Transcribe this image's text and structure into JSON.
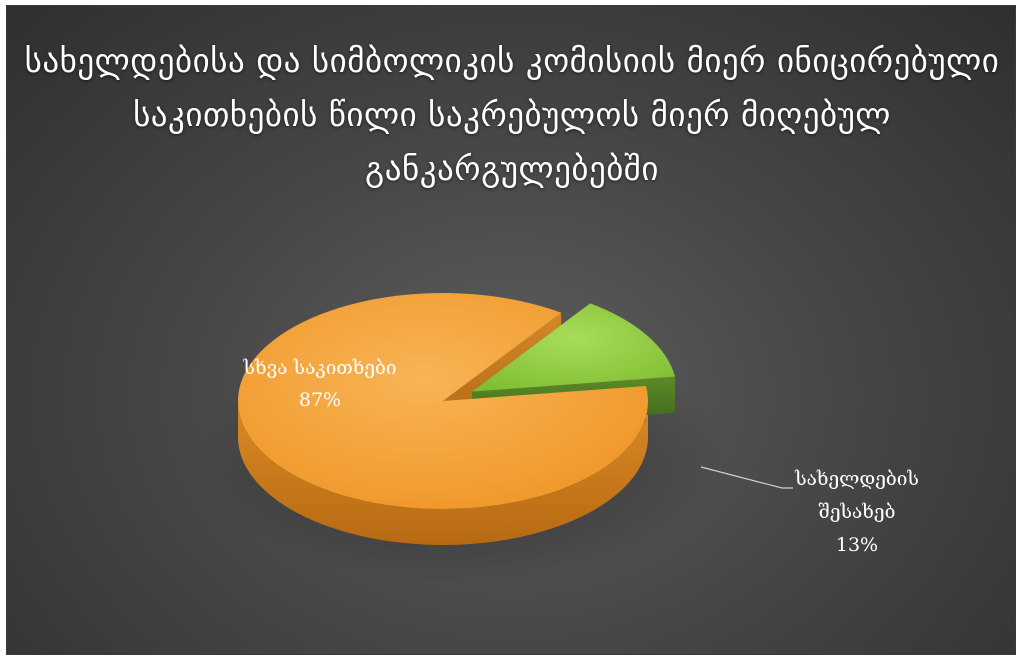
{
  "chart_data": {
    "type": "pie",
    "variant": "3d-exploded",
    "title": "სახელდებისა და სიმბოლიკის კომისიის მიერ ინიცირებული საკითხების წილი საკრებულოს მიერ მიღებულ განკარგულებებში",
    "slices": [
      {
        "label": "სხვა საკითხები",
        "value": 87,
        "display": "87%",
        "color": "#f6a33a",
        "side_color": "#c77a1d"
      },
      {
        "label_lines": [
          "სახელდების",
          "შესახებ"
        ],
        "value": 13,
        "display": "13%",
        "color": "#8fce3e",
        "side_color": "#4f7a1f"
      }
    ],
    "legend": "none",
    "label_colors": {
      "inside": "#ffffff",
      "outside": "#ffffff"
    },
    "background": "#474747"
  }
}
